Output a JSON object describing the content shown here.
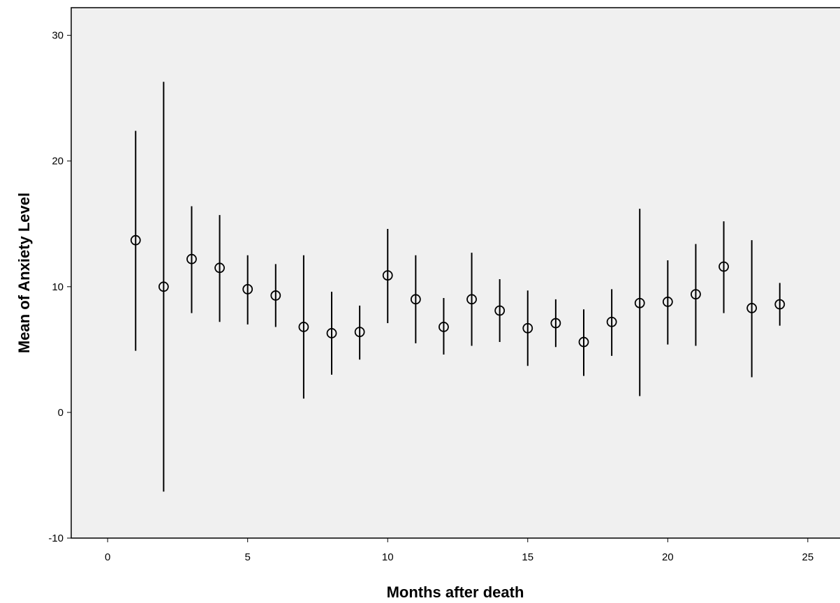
{
  "chart_data": {
    "type": "scatter",
    "subtype": "error-bar",
    "xlabel": "Months after death",
    "ylabel": "Mean of Anxiety Level",
    "xlim": [
      -1.3,
      26.2
    ],
    "ylim": [
      -10,
      32.2
    ],
    "x_ticks": [
      0,
      5,
      10,
      15,
      20,
      25
    ],
    "y_ticks": [
      -10,
      0,
      10,
      20,
      30
    ],
    "grid": false,
    "legend": "none",
    "background_color": "#f0f0f0",
    "mark_color": "#000000",
    "series": [
      {
        "points": [
          {
            "x": 1,
            "mean": 13.7,
            "lower": 4.9,
            "upper": 22.4
          },
          {
            "x": 2,
            "mean": 10.0,
            "lower": -6.3,
            "upper": 26.3
          },
          {
            "x": 3,
            "mean": 12.2,
            "lower": 7.9,
            "upper": 16.4
          },
          {
            "x": 4,
            "mean": 11.5,
            "lower": 7.2,
            "upper": 15.7
          },
          {
            "x": 5,
            "mean": 9.8,
            "lower": 7.0,
            "upper": 12.5
          },
          {
            "x": 6,
            "mean": 9.3,
            "lower": 6.8,
            "upper": 11.8
          },
          {
            "x": 7,
            "mean": 6.8,
            "lower": 1.1,
            "upper": 12.5
          },
          {
            "x": 8,
            "mean": 6.3,
            "lower": 3.0,
            "upper": 9.6
          },
          {
            "x": 9,
            "mean": 6.4,
            "lower": 4.2,
            "upper": 8.5
          },
          {
            "x": 10,
            "mean": 10.9,
            "lower": 7.1,
            "upper": 14.6
          },
          {
            "x": 11,
            "mean": 9.0,
            "lower": 5.5,
            "upper": 12.5
          },
          {
            "x": 12,
            "mean": 6.8,
            "lower": 4.6,
            "upper": 9.1
          },
          {
            "x": 13,
            "mean": 9.0,
            "lower": 5.3,
            "upper": 12.7
          },
          {
            "x": 14,
            "mean": 8.1,
            "lower": 5.6,
            "upper": 10.6
          },
          {
            "x": 15,
            "mean": 6.7,
            "lower": 3.7,
            "upper": 9.7
          },
          {
            "x": 16,
            "mean": 7.1,
            "lower": 5.2,
            "upper": 9.0
          },
          {
            "x": 17,
            "mean": 5.6,
            "lower": 2.9,
            "upper": 8.2
          },
          {
            "x": 18,
            "mean": 7.2,
            "lower": 4.5,
            "upper": 9.8
          },
          {
            "x": 19,
            "mean": 8.7,
            "lower": 1.3,
            "upper": 16.2
          },
          {
            "x": 20,
            "mean": 8.8,
            "lower": 5.4,
            "upper": 12.1
          },
          {
            "x": 21,
            "mean": 9.4,
            "lower": 5.3,
            "upper": 13.4
          },
          {
            "x": 22,
            "mean": 11.6,
            "lower": 7.9,
            "upper": 15.2
          },
          {
            "x": 23,
            "mean": 8.3,
            "lower": 2.8,
            "upper": 13.7
          },
          {
            "x": 24,
            "mean": 8.6,
            "lower": 6.9,
            "upper": 10.3
          }
        ]
      }
    ]
  }
}
